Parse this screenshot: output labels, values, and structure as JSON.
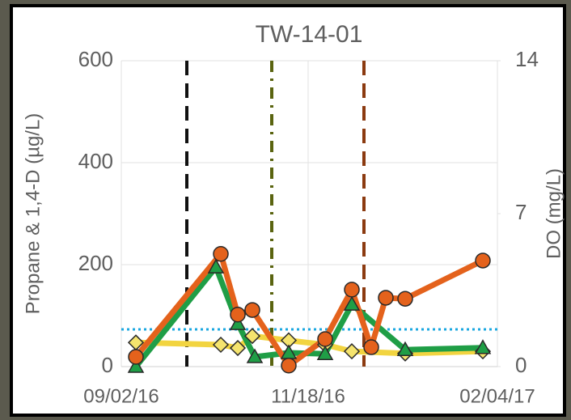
{
  "chart_data": {
    "type": "line",
    "title": "TW-14-01",
    "y_label": "Propane & 1,4-D (µg/L)",
    "y2_label": "DO (mg/L)",
    "xlim": [
      "09/02/16",
      "02/04/17"
    ],
    "xticks": [
      "09/02/16",
      "11/18/16",
      "02/04/17"
    ],
    "ylim": [
      0,
      600
    ],
    "yticks": [
      0,
      200,
      400,
      600
    ],
    "y2lim": [
      0,
      14
    ],
    "y2ticks": [
      0,
      7,
      14
    ],
    "grid": true,
    "series": [
      {
        "name": "1,4-D",
        "color": "#1f9e46",
        "marker": "triangle",
        "x": [
          "09/08/16",
          "10/11/16",
          "10/20/16",
          "10/27/16",
          "11/10/16",
          "11/25/16",
          "12/06/16",
          "12/28/16",
          "01/29/17"
        ],
        "values": [
          0,
          195,
          84,
          19,
          27,
          25,
          122,
          33,
          37
        ]
      },
      {
        "name": "Propane",
        "color": "#e4621c",
        "marker": "circle",
        "x": [
          "09/08/16",
          "10/13/16",
          "10/20/16",
          "10/26/16",
          "11/10/16",
          "11/25/16",
          "12/06/16",
          "12/14/16",
          "12/20/16",
          "12/28/16",
          "01/29/17"
        ],
        "values": [
          19,
          221,
          102,
          111,
          2,
          54,
          151,
          38,
          135,
          133,
          208
        ]
      },
      {
        "name": "DO",
        "color": "#f2d440",
        "marker": "diamond",
        "axis": "y2",
        "x": [
          "09/08/16",
          "10/13/16",
          "10/20/16",
          "10/26/16",
          "11/10/16",
          "11/25/16",
          "12/06/16",
          "12/28/16",
          "01/29/17"
        ],
        "values": [
          1.1,
          1.0,
          0.85,
          1.4,
          1.2,
          1.0,
          0.7,
          0.6,
          0.7
        ]
      }
    ],
    "reference_line": {
      "value": 73,
      "color": "#1aa7e0"
    },
    "vlines": [
      {
        "x": "09/29/16",
        "color": "#111111",
        "style": "dashed"
      },
      {
        "x": "11/03/16",
        "color": "#5a6410",
        "style": "dash-dot"
      },
      {
        "x": "12/11/16",
        "color": "#8b3a10",
        "style": "dashed"
      }
    ]
  }
}
